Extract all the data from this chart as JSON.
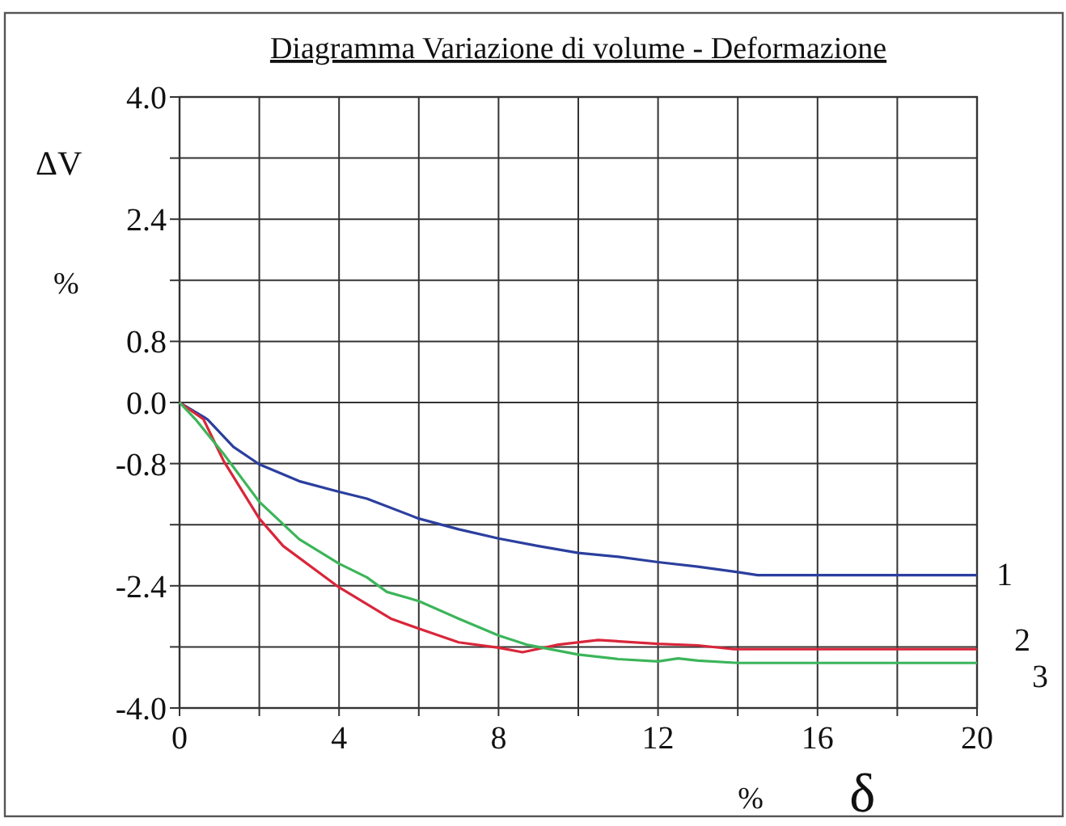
{
  "chart_data": {
    "type": "line",
    "title": "Diagramma  Variazione di volume - Deformazione",
    "xlabel": "δ",
    "ylabel": "ΔV",
    "annotations": [
      "%",
      "%"
    ],
    "xlim": [
      0,
      20
    ],
    "ylim": [
      -4,
      4
    ],
    "xticks": [
      0,
      {
        "value": 2,
        "label": null
      },
      4,
      {
        "value": 6,
        "label": null
      },
      8,
      {
        "value": 10,
        "label": null
      },
      12,
      {
        "value": 14,
        "label": null
      },
      16,
      {
        "value": 18,
        "label": null
      },
      20
    ],
    "yticks": [
      {
        "value": 4,
        "label": "4.0"
      },
      {
        "value": 3.2,
        "label": null
      },
      {
        "value": 2.4,
        "label": "2.4"
      },
      {
        "value": 1.6,
        "label": null
      },
      {
        "value": 0.8,
        "label": "0.8"
      },
      {
        "value": 0,
        "label": "0.0"
      },
      {
        "value": -0.8,
        "label": "-0.8"
      },
      {
        "value": -1.6,
        "label": null
      },
      {
        "value": -2.4,
        "label": "-2.4"
      },
      {
        "value": -3.2,
        "label": null
      },
      {
        "value": -4,
        "label": "-4.0"
      }
    ],
    "grid": true,
    "marker": "none",
    "line_style": "solid",
    "series": [
      {
        "name": "1",
        "color": "#2b3f9e",
        "x": [
          0,
          0.7,
          1.35,
          2,
          3,
          4,
          4.7,
          6,
          7,
          8,
          9,
          10,
          11,
          12,
          13,
          14,
          14.5,
          20
        ],
        "values": [
          0,
          -0.22,
          -0.58,
          -0.81,
          -1.03,
          -1.17,
          -1.26,
          -1.52,
          -1.66,
          -1.78,
          -1.88,
          -1.97,
          -2.02,
          -2.09,
          -2.15,
          -2.22,
          -2.26,
          -2.26
        ]
      },
      {
        "name": "2",
        "color": "#d9263a",
        "x": [
          0,
          0.6,
          1.1,
          2,
          2.6,
          4,
          5.3,
          6,
          7,
          8,
          8.6,
          9.5,
          10.5,
          12,
          13,
          13.9,
          20
        ],
        "values": [
          0,
          -0.22,
          -0.76,
          -1.52,
          -1.88,
          -2.42,
          -2.83,
          -2.96,
          -3.14,
          -3.21,
          -3.27,
          -3.17,
          -3.11,
          -3.16,
          -3.18,
          -3.23,
          -3.23
        ]
      },
      {
        "name": "3",
        "color": "#3cb55a",
        "x": [
          0,
          0.4,
          1.1,
          2,
          3,
          4,
          4.7,
          5.2,
          6,
          7,
          8,
          8.7,
          10,
          11,
          12,
          12.5,
          13,
          14,
          20
        ],
        "values": [
          0,
          -0.22,
          -0.67,
          -1.3,
          -1.79,
          -2.11,
          -2.29,
          -2.48,
          -2.6,
          -2.83,
          -3.05,
          -3.17,
          -3.3,
          -3.36,
          -3.39,
          -3.35,
          -3.38,
          -3.41,
          -3.41
        ]
      }
    ]
  }
}
